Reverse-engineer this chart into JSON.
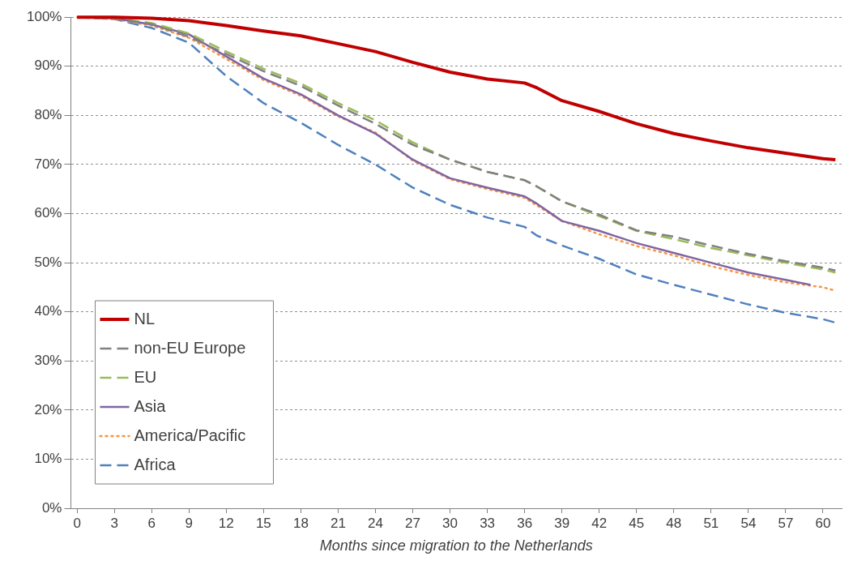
{
  "chart_data": {
    "type": "line",
    "xlabel": "Months since migration to the Netherlands",
    "xlim": [
      -0.5,
      61.5
    ],
    "xticks": [
      0,
      3,
      6,
      9,
      12,
      15,
      18,
      21,
      24,
      27,
      30,
      33,
      36,
      39,
      42,
      45,
      48,
      51,
      54,
      57,
      60
    ],
    "ylim": [
      0,
      100
    ],
    "yticks": [
      {
        "value": 0,
        "label": "0%"
      },
      {
        "value": 10,
        "label": "10%"
      },
      {
        "value": 20,
        "label": "20%"
      },
      {
        "value": 30,
        "label": "30%"
      },
      {
        "value": 40,
        "label": "40%"
      },
      {
        "value": 50,
        "label": "50%"
      },
      {
        "value": 60,
        "label": "60%"
      },
      {
        "value": 70,
        "label": "70%"
      },
      {
        "value": 80,
        "label": "80%"
      },
      {
        "value": 90,
        "label": "90%"
      },
      {
        "value": 100,
        "label": "100%"
      }
    ],
    "grid": "y",
    "legend": "bottom left",
    "marker": "none",
    "series": [
      {
        "name": "NL",
        "color": "#c00000",
        "line_style": "solid",
        "x": [
          0,
          3,
          6,
          9,
          12,
          15,
          18,
          21,
          24,
          27,
          30,
          33,
          36,
          37,
          39,
          42,
          45,
          48,
          51,
          54,
          57,
          60,
          61
        ],
        "values": [
          100,
          100,
          99.8,
          99.3,
          98.3,
          97.2,
          96.2,
          94.6,
          93,
          90.8,
          88.8,
          87.4,
          86.6,
          85.6,
          83,
          80.8,
          78.3,
          76.3,
          74.8,
          73.4,
          72.3,
          71.2,
          71
        ]
      },
      {
        "name": "non-EU Europe",
        "color": "#808080",
        "line_style": "dashed",
        "x": [
          0,
          3,
          6,
          9,
          12,
          15,
          18,
          21,
          24,
          27,
          30,
          33,
          36,
          37,
          39,
          42,
          45,
          48,
          51,
          54,
          57,
          60,
          61
        ],
        "values": [
          100,
          99.8,
          98.6,
          96,
          92.5,
          89,
          86,
          82,
          78.3,
          74,
          71,
          68.5,
          66.8,
          65.5,
          62.5,
          59.8,
          56.6,
          55.3,
          53.5,
          51.8,
          50.3,
          49,
          48.4
        ]
      },
      {
        "name": "EU",
        "color": "#9bbb59",
        "line_style": "dashed",
        "x": [
          0,
          3,
          6,
          9,
          12,
          15,
          18,
          21,
          24,
          27,
          30,
          33,
          36,
          37,
          39,
          42,
          45,
          48,
          51,
          54,
          57,
          60,
          61
        ],
        "values": [
          100,
          99.8,
          98.8,
          96.7,
          93,
          89.5,
          86.5,
          82.5,
          79,
          74.5,
          71,
          68.5,
          66.8,
          65.5,
          62.5,
          59.5,
          56.5,
          54.8,
          53,
          51.5,
          50,
          48.6,
          48
        ]
      },
      {
        "name": "Asia",
        "color": "#8064a2",
        "line_style": "solid",
        "x": [
          0,
          3,
          6,
          9,
          12,
          15,
          18,
          21,
          24,
          27,
          30,
          33,
          36,
          37,
          39,
          42,
          45,
          48,
          51,
          54,
          57,
          59
        ],
        "values": [
          100,
          99.8,
          98.5,
          96.5,
          92,
          87.5,
          84.3,
          80,
          76.3,
          71,
          67.2,
          65.3,
          63.5,
          62,
          58.5,
          56.5,
          54,
          52,
          50,
          48,
          46.5,
          45.5
        ]
      },
      {
        "name": "America/Pacific",
        "color": "#f79646",
        "line_style": "dotted",
        "x": [
          0,
          3,
          6,
          9,
          12,
          15,
          18,
          21,
          24,
          27,
          30,
          33,
          36,
          39,
          42,
          45,
          48,
          51,
          54,
          57,
          60,
          61
        ],
        "values": [
          100,
          99.6,
          98.3,
          95.8,
          91.5,
          87.2,
          84,
          79.8,
          76.5,
          70.8,
          67,
          65,
          63.2,
          58.5,
          55.8,
          53.4,
          51.5,
          49.3,
          47.5,
          46,
          45,
          44.3
        ]
      },
      {
        "name": "Africa",
        "color": "#4f81bd",
        "line_style": "dashed",
        "x": [
          0,
          3,
          6,
          9,
          12,
          15,
          18,
          21,
          24,
          27,
          30,
          33,
          36,
          37,
          39,
          42,
          45,
          48,
          51,
          54,
          57,
          60,
          61
        ],
        "values": [
          100,
          99.6,
          97.8,
          94.8,
          88,
          82.5,
          78.5,
          74,
          70,
          65.3,
          61.8,
          59.2,
          57.3,
          55.5,
          53.5,
          50.8,
          47.6,
          45.5,
          43.5,
          41.5,
          39.8,
          38.5,
          37.8
        ]
      }
    ]
  }
}
